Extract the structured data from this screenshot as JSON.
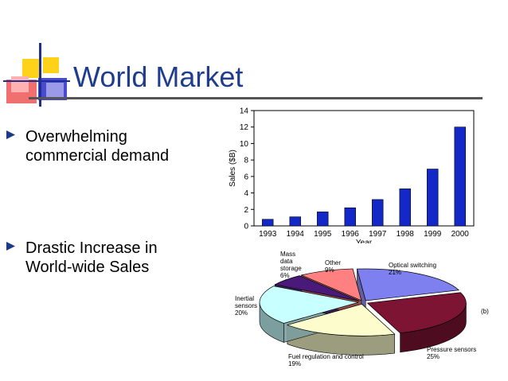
{
  "slide": {
    "title": "World Market",
    "bullets": [
      {
        "text": "Overwhelming commercial demand"
      },
      {
        "text": "Drastic Increase in World-wide Sales"
      }
    ],
    "accent_color": "#1f3d8f"
  },
  "chart_data": [
    {
      "type": "bar",
      "categories": [
        "1993",
        "1994",
        "1995",
        "1996",
        "1997",
        "1998",
        "1999",
        "2000"
      ],
      "values": [
        0.8,
        1.1,
        1.7,
        2.2,
        3.2,
        4.5,
        6.9,
        12.0
      ],
      "xlabel": "Year",
      "ylabel": "Sales ($B)",
      "ylim": [
        0,
        14
      ],
      "yticks": [
        "0",
        "2",
        "4",
        "6",
        "8",
        "10",
        "12",
        "14"
      ],
      "bar_color": "#1428c8",
      "grid": false
    },
    {
      "type": "pie",
      "style": "3d-exploded",
      "corner_label": "(b)",
      "slices": [
        {
          "label_lines": [
            "Optical switching",
            "21%"
          ],
          "value": 21,
          "color": "#7f80f0"
        },
        {
          "label_lines": [
            "Pressure sensors",
            "25%"
          ],
          "value": 25,
          "color": "#7d1433"
        },
        {
          "label_lines": [
            "Fuel regulation and control",
            "19%"
          ],
          "value": 19,
          "color": "#fcfccc"
        },
        {
          "label_lines": [
            "Inertial",
            "sensors",
            "20%"
          ],
          "value": 20,
          "color": "#c8ffff"
        },
        {
          "label_lines": [
            "Mass",
            "data",
            "storage",
            "6%"
          ],
          "value": 6,
          "color": "#4a1a7a"
        },
        {
          "label_lines": [
            "Other",
            "9%"
          ],
          "value": 9,
          "color": "#ff8080"
        }
      ]
    }
  ]
}
